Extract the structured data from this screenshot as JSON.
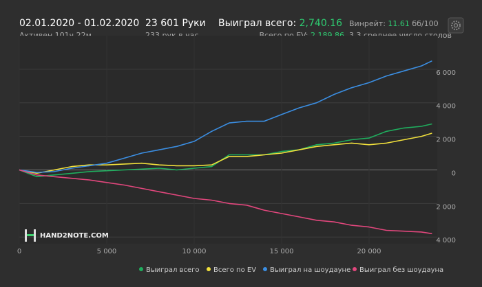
{
  "header": {
    "date_range": "02.01.2020 - 01.02.2020",
    "active": "Активен 101ч 22м",
    "hands": "23 601 Руки",
    "hands_per_hour": "233 рук в час",
    "won_label": "Выиграл всего:",
    "won_value": "2,740.16",
    "ev_label": "Всего по EV:",
    "ev_value": "2,189.86",
    "winrate_label": "Винрейт:",
    "winrate_value": "11.61",
    "winrate_unit": "бб/100",
    "tables": "3.3 среднее число столов"
  },
  "logo": "HAND2NOTE.COM",
  "chart_data": {
    "type": "line",
    "x": [
      0,
      1000,
      2000,
      3000,
      4000,
      5000,
      6000,
      7000,
      8000,
      9000,
      10000,
      11000,
      12000,
      13000,
      14000,
      15000,
      16000,
      17000,
      18000,
      19000,
      20000,
      21000,
      22000,
      23000,
      23601
    ],
    "series": [
      {
        "name": "Выиграл всего",
        "color": "#1fae5e",
        "values": [
          0,
          -400,
          -300,
          -200,
          -100,
          -50,
          0,
          50,
          100,
          0,
          100,
          200,
          900,
          900,
          900,
          1100,
          1200,
          1500,
          1600,
          1800,
          1900,
          2300,
          2500,
          2600,
          2740
        ]
      },
      {
        "name": "Всего по EV",
        "color": "#f2e13c",
        "values": [
          0,
          -200,
          0,
          200,
          300,
          300,
          350,
          400,
          300,
          250,
          250,
          300,
          800,
          800,
          900,
          1000,
          1200,
          1400,
          1500,
          1600,
          1500,
          1600,
          1800,
          2000,
          2190
        ]
      },
      {
        "name": "Выиграл на шоудауне",
        "color": "#3b8ee2",
        "values": [
          0,
          -150,
          -100,
          100,
          250,
          400,
          700,
          1000,
          1200,
          1400,
          1700,
          2300,
          2800,
          2900,
          2900,
          3300,
          3700,
          4000,
          4500,
          4900,
          5200,
          5600,
          5900,
          6200,
          6500
        ]
      },
      {
        "name": "Выиграл без шоудауна",
        "color": "#e2477d",
        "values": [
          0,
          -300,
          -400,
          -500,
          -600,
          -750,
          -900,
          -1100,
          -1300,
          -1500,
          -1700,
          -1800,
          -2000,
          -2100,
          -2400,
          -2600,
          -2800,
          -3000,
          -3100,
          -3300,
          -3400,
          -3600,
          -3650,
          -3700,
          -3800
        ]
      }
    ],
    "xlim": [
      0,
      23900
    ],
    "ylim": [
      -4400,
      8000
    ],
    "xticks": [
      0,
      {
        "value": 5000,
        "label": "5 000"
      },
      {
        "value": 10000,
        "label": "10 000"
      },
      {
        "value": 15000,
        "label": "15 000"
      },
      {
        "value": 20000,
        "label": "20 000"
      }
    ],
    "yticks": [
      {
        "value": -4000,
        "label": "4 000"
      },
      {
        "value": -2000,
        "label": "2 000"
      },
      0,
      {
        "value": 2000,
        "label": "2 000"
      },
      {
        "value": 4000,
        "label": "4 000"
      },
      {
        "value": 6000,
        "label": "6 000"
      }
    ],
    "grid": true,
    "legend": "bottom"
  }
}
